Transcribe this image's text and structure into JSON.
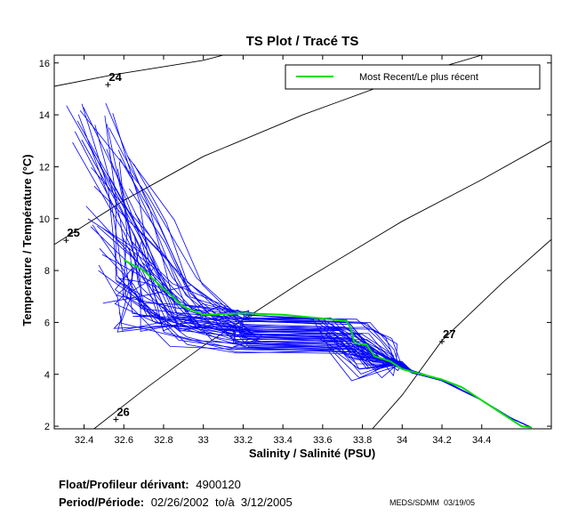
{
  "chart_data": {
    "type": "line",
    "title": "TS Plot / Tracé TS",
    "xlabel": "Salinity / Salinité (PSU)",
    "ylabel": "Temperature / Température (°C)",
    "xlim": [
      32.25,
      34.75
    ],
    "ylim": [
      1.9,
      16.3
    ],
    "x_ticks": [
      32.4,
      32.6,
      32.8,
      33,
      33.2,
      33.4,
      33.6,
      33.8,
      34,
      34.2,
      34.4
    ],
    "y_ticks": [
      2,
      4,
      6,
      8,
      10,
      12,
      14,
      16
    ],
    "legend": {
      "placement": "top-right",
      "entries": [
        "Most Recent/Le plus récent"
      ]
    },
    "grid": false,
    "colors": {
      "profiles": "#0000ff",
      "most_recent": "#00dd00",
      "isopycnals": "#000000"
    },
    "isopycnals": [
      {
        "label": "24",
        "label_at": [
          32.52,
          15.3
        ],
        "points": [
          [
            32.25,
            15.1
          ],
          [
            32.55,
            15.55
          ],
          [
            33.0,
            16.1
          ],
          [
            33.1,
            16.3
          ]
        ]
      },
      {
        "label": "25",
        "label_at": [
          32.31,
          9.3
        ],
        "points": [
          [
            32.25,
            9.0
          ],
          [
            32.6,
            10.7
          ],
          [
            33.0,
            12.4
          ],
          [
            33.5,
            14.0
          ],
          [
            34.0,
            15.4
          ],
          [
            34.4,
            16.3
          ]
        ]
      },
      {
        "label": "26",
        "label_at": [
          32.56,
          2.4
        ],
        "points": [
          [
            32.45,
            1.9
          ],
          [
            32.7,
            3.4
          ],
          [
            33.0,
            5.1
          ],
          [
            33.5,
            7.6
          ],
          [
            34.0,
            9.9
          ],
          [
            34.4,
            11.5
          ],
          [
            34.75,
            13.0
          ]
        ]
      },
      {
        "label": "27",
        "label_at": [
          34.2,
          5.4
        ],
        "points": [
          [
            33.85,
            1.9
          ],
          [
            34.0,
            3.2
          ],
          [
            34.2,
            5.3
          ],
          [
            34.5,
            7.5
          ],
          [
            34.75,
            9.2
          ]
        ]
      }
    ],
    "series": [
      {
        "name": "Most Recent/Le plus récent",
        "points": [
          [
            32.6,
            8.4
          ],
          [
            32.7,
            8.0
          ],
          [
            32.8,
            7.3
          ],
          [
            32.9,
            6.6
          ],
          [
            33.0,
            6.3
          ],
          [
            33.2,
            6.35
          ],
          [
            33.4,
            6.3
          ],
          [
            33.6,
            6.15
          ],
          [
            33.72,
            6.05
          ],
          [
            33.74,
            5.8
          ],
          [
            33.76,
            5.2
          ],
          [
            33.82,
            5.15
          ],
          [
            33.86,
            4.7
          ],
          [
            33.94,
            4.5
          ],
          [
            34.0,
            4.2
          ],
          [
            34.1,
            4.0
          ],
          [
            34.2,
            3.8
          ],
          [
            34.3,
            3.5
          ],
          [
            34.4,
            3.0
          ],
          [
            34.5,
            2.5
          ],
          [
            34.6,
            2.0
          ],
          [
            34.65,
            1.95
          ]
        ]
      }
    ]
  },
  "footer": {
    "float_label": "Float/Profileur dérivant:",
    "float_id": "4900120",
    "period_label": "Period/Période:",
    "period_value": "02/26/2002  to/à  3/12/2005",
    "credit": "MEDS/SDMM  03/19/05"
  }
}
